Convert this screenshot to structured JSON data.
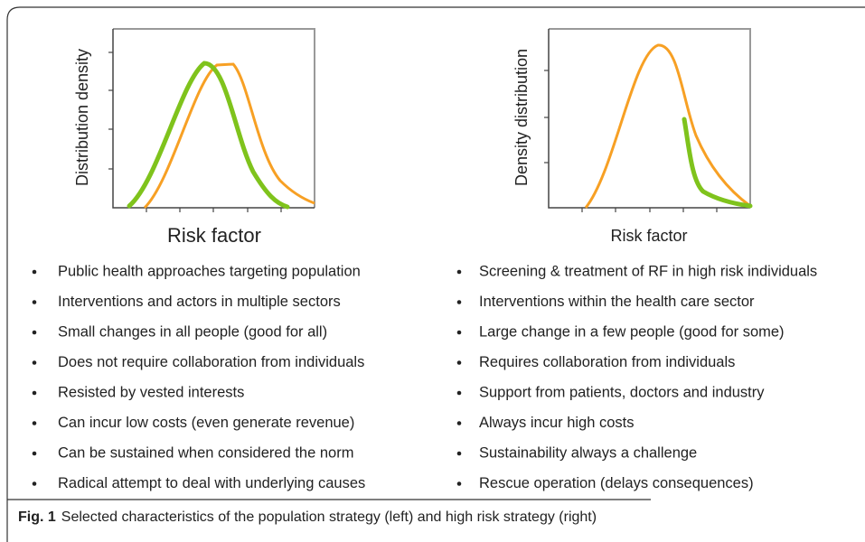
{
  "panels": [
    {
      "y_label": "Distribution density",
      "x_label": "Risk factor",
      "items": [
        "Public health approaches targeting population",
        "Interventions and actors in multiple sectors",
        "Small changes in all people (good for all)",
        "Does not require collaboration from individuals",
        "Resisted by vested interests",
        "Can incur low costs (even generate revenue)",
        "Can be sustained when considered the norm",
        "Radical attempt to deal with underlying causes"
      ]
    },
    {
      "y_label": "Density distribution",
      "x_label": "Risk factor",
      "items": [
        "Screening & treatment of RF in high risk individuals",
        "Interventions within the health care sector",
        "Large change in a few people (good for some)",
        "Requires collaboration from individuals",
        "Support from patients, doctors and industry",
        "Always incur high costs",
        "Sustainability always a challenge",
        "Rescue operation (delays consequences)"
      ]
    }
  ],
  "caption": {
    "label": "Fig. 1",
    "text": "Selected characteristics of the population strategy (left) and high risk strategy (right)"
  }
}
